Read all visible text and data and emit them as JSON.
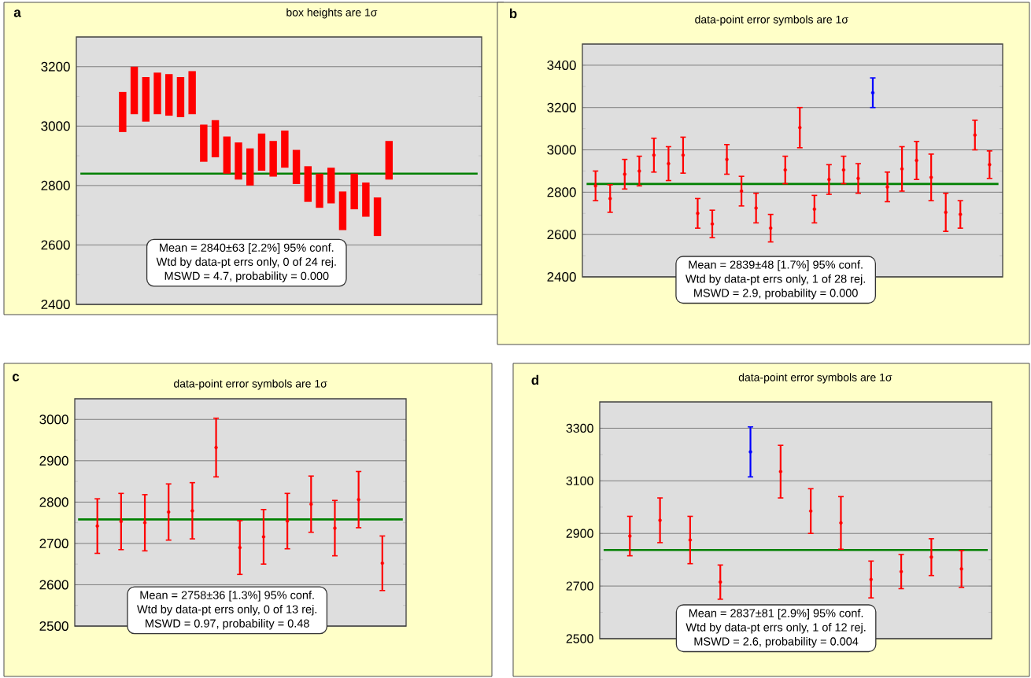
{
  "chart_data": [
    {
      "type": "bar",
      "title": "box heights are 1σ",
      "annotations": [
        "a",
        "Mean = 2840±63 [2.2%] 95% conf.",
        "Wtd by data-pt errs only, 0 of 24 rej.",
        "MSWD = 4.7, probability = 0.000"
      ],
      "categories": [
        null,
        null,
        null,
        null,
        null,
        null,
        null,
        null,
        null,
        null,
        null,
        null,
        null,
        null,
        null,
        null,
        null,
        null,
        null,
        null,
        null,
        null,
        null,
        null
      ],
      "base": [
        2980,
        3040,
        3015,
        3040,
        3035,
        3030,
        3040,
        2880,
        2895,
        2840,
        2820,
        2800,
        2850,
        2830,
        2860,
        2805,
        2745,
        2725,
        2740,
        2650,
        2720,
        2695,
        2630,
        2820
      ],
      "values": [
        135,
        160,
        150,
        140,
        140,
        135,
        145,
        125,
        125,
        125,
        125,
        125,
        125,
        120,
        125,
        115,
        120,
        115,
        120,
        130,
        120,
        115,
        130,
        130
      ],
      "color": "#ff0000",
      "ylim": [
        2400,
        3300
      ],
      "yticks": [
        2400,
        2600,
        2800,
        3000,
        3200
      ],
      "grid": "y",
      "tick_labels": "y",
      "ref_lines": [
        {
          "axis": "y",
          "value": 2840,
          "color": "#008000"
        }
      ]
    },
    {
      "type": "scatter",
      "title": "data-point error symbols are 1σ",
      "annotations": [
        "b",
        "Mean = 2839±48 [1.7%] 95% conf.",
        "Wtd by data-pt errs only, 1 of 28 rej.",
        "MSWD = 2.9, probability = 0.000"
      ],
      "categories": [
        null,
        null,
        null,
        null,
        null,
        null,
        null,
        null,
        null,
        null,
        null,
        null,
        null,
        null,
        null,
        null,
        null,
        null,
        null,
        null,
        null,
        null,
        null,
        null,
        null,
        null,
        null,
        null
      ],
      "values": [
        2830,
        2770,
        2885,
        2900,
        2975,
        2935,
        2975,
        2700,
        2650,
        2955,
        2805,
        2725,
        2630,
        2905,
        3105,
        2720,
        2860,
        2905,
        2865,
        3270,
        2825,
        2910,
        2950,
        2870,
        2705,
        2695,
        3070,
        2930
      ],
      "errors": [
        70,
        65,
        70,
        70,
        80,
        80,
        85,
        70,
        65,
        70,
        70,
        70,
        65,
        65,
        95,
        65,
        70,
        65,
        70,
        70,
        70,
        105,
        90,
        110,
        90,
        65,
        70,
        65
      ],
      "colors": [
        "#ff0000",
        "#ff0000",
        "#ff0000",
        "#ff0000",
        "#ff0000",
        "#ff0000",
        "#ff0000",
        "#ff0000",
        "#ff0000",
        "#ff0000",
        "#ff0000",
        "#ff0000",
        "#ff0000",
        "#ff0000",
        "#ff0000",
        "#ff0000",
        "#ff0000",
        "#ff0000",
        "#ff0000",
        "#0000ff",
        "#ff0000",
        "#ff0000",
        "#ff0000",
        "#ff0000",
        "#ff0000",
        "#ff0000",
        "#ff0000",
        "#ff0000"
      ],
      "ylim": [
        2400,
        3500
      ],
      "yticks": [
        2400,
        2600,
        2800,
        3000,
        3200,
        3400
      ],
      "grid": "y",
      "tick_labels": "y",
      "ref_lines": [
        {
          "axis": "y",
          "value": 2839,
          "color": "#008000"
        }
      ]
    },
    {
      "type": "scatter",
      "title": "data-point error symbols are 1σ",
      "annotations": [
        "c",
        "Mean = 2758±36 [1.3%] 95% conf.",
        "Wtd by data-pt errs only, 0 of 13 rej.",
        "MSWD = 0.97, probability = 0.48"
      ],
      "categories": [
        null,
        null,
        null,
        null,
        null,
        null,
        null,
        null,
        null,
        null,
        null,
        null,
        null
      ],
      "values": [
        2742,
        2753,
        2750,
        2776,
        2779,
        2932,
        2690,
        2716,
        2754,
        2795,
        2737,
        2806,
        2652
      ],
      "errors": [
        66,
        68,
        68,
        68,
        68,
        71,
        65,
        66,
        67,
        68,
        67,
        68,
        66
      ],
      "color": "#ff0000",
      "ylim": [
        2500,
        3050
      ],
      "yticks": [
        2500,
        2600,
        2700,
        2800,
        2900,
        3000
      ],
      "grid": "y",
      "tick_labels": "y",
      "ref_lines": [
        {
          "axis": "y",
          "value": 2758,
          "color": "#008000"
        }
      ]
    },
    {
      "type": "scatter",
      "title": "data-point error symbols are 1σ",
      "annotations": [
        "d",
        "Mean = 2837±81 [2.9%] 95% conf.",
        "Wtd by data-pt errs only, 1 of 12 rej.",
        "MSWD = 2.6, probability = 0.004"
      ],
      "categories": [
        null,
        null,
        null,
        null,
        null,
        null,
        null,
        null,
        null,
        null,
        null,
        null
      ],
      "values": [
        2890,
        2950,
        2875,
        2715,
        3210,
        3135,
        2985,
        2940,
        2725,
        2755,
        2810,
        2765
      ],
      "errors": [
        75,
        85,
        90,
        65,
        95,
        100,
        85,
        100,
        70,
        65,
        70,
        70
      ],
      "colors": [
        "#ff0000",
        "#ff0000",
        "#ff0000",
        "#ff0000",
        "#0000ff",
        "#ff0000",
        "#ff0000",
        "#ff0000",
        "#ff0000",
        "#ff0000",
        "#ff0000",
        "#ff0000"
      ],
      "ylim": [
        2500,
        3400
      ],
      "yticks": [
        2500,
        2700,
        2900,
        3100,
        3300
      ],
      "grid": "y",
      "tick_labels": "y",
      "ref_lines": [
        {
          "axis": "y",
          "value": 2837,
          "color": "#008000"
        }
      ]
    }
  ]
}
